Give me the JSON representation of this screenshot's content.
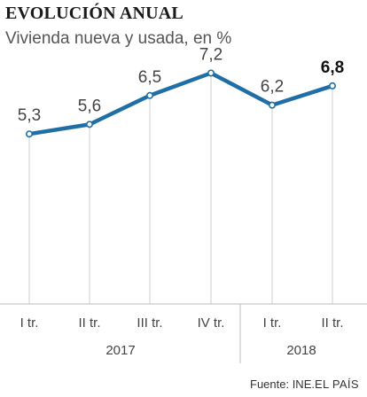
{
  "header": {
    "title": "EVOLUCIÓN ANUAL",
    "subtitle": "Vivienda nueva y usada, en %"
  },
  "chart_data": {
    "type": "line",
    "title": "EVOLUCIÓN ANUAL",
    "subtitle": "Vivienda nueva y usada, en %",
    "categories": [
      "I tr.",
      "II tr.",
      "III tr.",
      "IV tr.",
      "I tr.",
      "II tr."
    ],
    "groups": [
      {
        "label": "2017",
        "categories": [
          "I tr.",
          "II tr.",
          "III tr.",
          "IV tr."
        ]
      },
      {
        "label": "2018",
        "categories": [
          "I tr.",
          "II tr."
        ]
      }
    ],
    "series": [
      {
        "values": [
          5.3,
          5.6,
          6.5,
          7.2,
          6.2,
          6.8
        ],
        "labels": [
          "5,3",
          "5,6",
          "6,5",
          "7,2",
          "6,2",
          "6,8"
        ],
        "highlight_last": true
      }
    ],
    "ylim": [
      0,
      8
    ],
    "xlabel": "",
    "ylabel": "",
    "grid": false,
    "colors": {
      "line": "#1f6fa6",
      "marker_fill": "#ffffff",
      "axis": "#bdbdbd",
      "droplines": "#cfcfcf"
    }
  },
  "footer": {
    "source": "Fuente: INE.",
    "brand": "EL PAÍS"
  }
}
